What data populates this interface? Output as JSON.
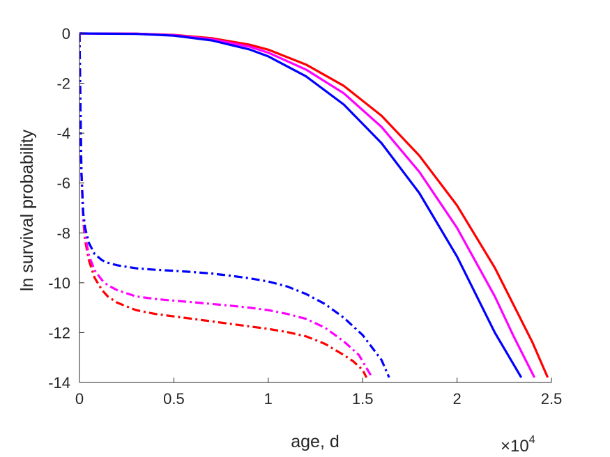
{
  "chart_data": {
    "type": "line",
    "title": "",
    "xlabel": "age, d",
    "ylabel": "ln survival probability",
    "x_exponent_label": "×10",
    "x_exponent_power": "4",
    "xlim": [
      0,
      25000
    ],
    "ylim": [
      -14,
      0
    ],
    "x_ticks": [
      0,
      5000,
      10000,
      15000,
      20000,
      25000
    ],
    "x_tick_labels": [
      "0",
      "0.5",
      "1",
      "1.5",
      "2",
      "2.5"
    ],
    "y_ticks": [
      0,
      -2,
      -4,
      -6,
      -8,
      -10,
      -12,
      -14
    ],
    "y_tick_labels": [
      "0",
      "-2",
      "-4",
      "-6",
      "-8",
      "-10",
      "-12",
      "-14"
    ],
    "grid": false,
    "series": [
      {
        "color": "#ff0000",
        "style": "solid",
        "x": [
          0,
          3000,
          5000,
          7000,
          9000,
          10000,
          12000,
          14000,
          16000,
          18000,
          20000,
          22000,
          24000,
          24800
        ],
        "y": [
          0,
          -0.01,
          -0.06,
          -0.19,
          -0.45,
          -0.65,
          -1.25,
          -2.1,
          -3.3,
          -4.9,
          -6.9,
          -9.4,
          -12.4,
          -13.8
        ]
      },
      {
        "color": "#ff00ff",
        "style": "solid",
        "x": [
          0,
          3000,
          5000,
          7000,
          9000,
          10000,
          12000,
          14000,
          16000,
          18000,
          20000,
          22000,
          23000,
          24100
        ],
        "y": [
          0,
          -0.01,
          -0.07,
          -0.23,
          -0.53,
          -0.77,
          -1.45,
          -2.4,
          -3.75,
          -5.55,
          -7.8,
          -10.55,
          -12.15,
          -13.8
        ]
      },
      {
        "color": "#0000ff",
        "style": "solid",
        "x": [
          0,
          3000,
          5000,
          7000,
          9000,
          10000,
          12000,
          14000,
          16000,
          18000,
          20000,
          22000,
          23400
        ],
        "y": [
          0,
          -0.02,
          -0.09,
          -0.28,
          -0.64,
          -0.92,
          -1.72,
          -2.85,
          -4.4,
          -6.4,
          -8.95,
          -12.0,
          -13.8
        ]
      },
      {
        "color": "#ff0000",
        "style": "dashdot",
        "x": [
          0,
          50,
          100,
          200,
          300,
          500,
          800,
          1200,
          1500,
          2000,
          3000,
          4000,
          5000,
          6000,
          7000,
          8000,
          9000,
          10000,
          11000,
          12000,
          13000,
          14000,
          14500,
          15000,
          15200
        ],
        "y": [
          0,
          -3.0,
          -5.5,
          -7.5,
          -8.3,
          -9.1,
          -9.8,
          -10.3,
          -10.55,
          -10.8,
          -11.1,
          -11.25,
          -11.35,
          -11.45,
          -11.55,
          -11.65,
          -11.75,
          -11.85,
          -11.98,
          -12.15,
          -12.45,
          -12.9,
          -13.15,
          -13.5,
          -13.8
        ]
      },
      {
        "color": "#ff00ff",
        "style": "dashdot",
        "x": [
          0,
          50,
          100,
          200,
          300,
          500,
          800,
          1200,
          1500,
          2000,
          3000,
          4000,
          5000,
          6000,
          7000,
          8000,
          9000,
          10000,
          11000,
          12000,
          13000,
          14000,
          14800,
          15500
        ],
        "y": [
          0,
          -3.0,
          -5.5,
          -7.4,
          -8.1,
          -8.9,
          -9.5,
          -9.9,
          -10.1,
          -10.3,
          -10.55,
          -10.65,
          -10.72,
          -10.78,
          -10.85,
          -10.92,
          -11.0,
          -11.1,
          -11.25,
          -11.45,
          -11.8,
          -12.35,
          -12.9,
          -13.8
        ]
      },
      {
        "color": "#0000ff",
        "style": "dashdot",
        "x": [
          0,
          50,
          100,
          200,
          300,
          500,
          800,
          1200,
          1500,
          2000,
          3000,
          4000,
          5000,
          6000,
          7000,
          8000,
          9000,
          10000,
          11000,
          12000,
          13000,
          14000,
          15000,
          16000,
          16400
        ],
        "y": [
          0,
          -3.0,
          -5.5,
          -7.2,
          -7.8,
          -8.4,
          -8.85,
          -9.1,
          -9.2,
          -9.3,
          -9.42,
          -9.48,
          -9.52,
          -9.57,
          -9.63,
          -9.72,
          -9.82,
          -9.95,
          -10.15,
          -10.45,
          -10.85,
          -11.4,
          -12.1,
          -13.1,
          -13.8
        ]
      }
    ]
  }
}
